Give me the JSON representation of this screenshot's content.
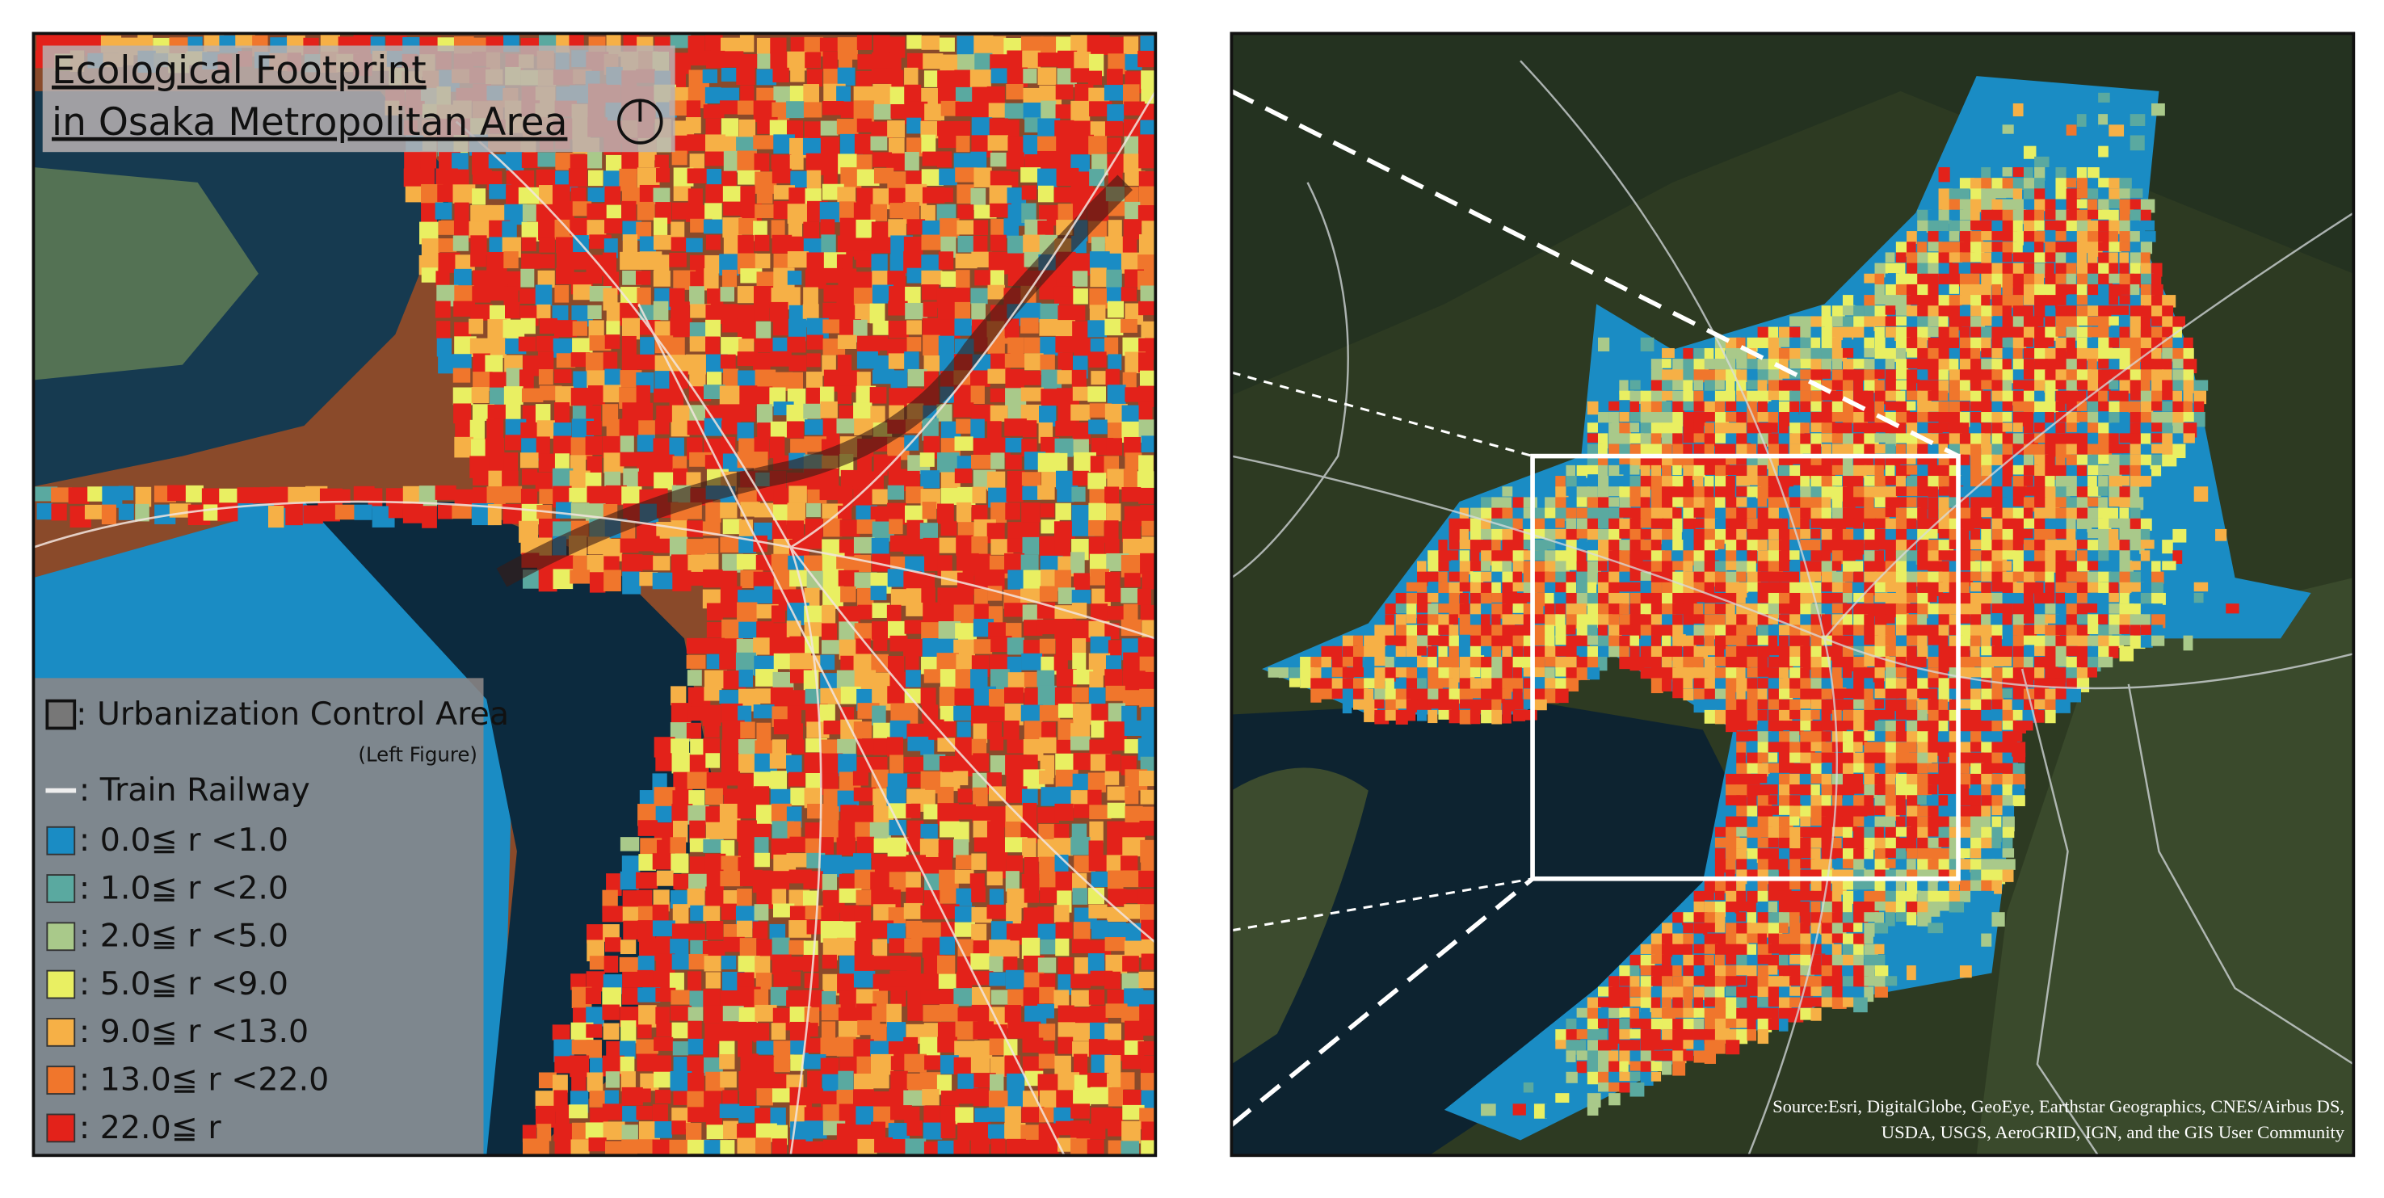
{
  "left_map": {
    "title_lines": [
      "Ecological Footprint",
      "in Osaka Metropolitan Area"
    ],
    "legend": {
      "urbanization": ": Urbanization Control Area",
      "urbanization_note": "(Left Figure)",
      "railway": ": Train Railway",
      "items": [
        {
          "label": ":   0.0≦ r <1.0",
          "color": "#1a8cc4"
        },
        {
          "label": ":   1.0≦ r <2.0",
          "color": "#5aa9a0"
        },
        {
          "label": ":   2.0≦ r <5.0",
          "color": "#a9c98a"
        },
        {
          "label": ":   5.0≦ r <9.0",
          "color": "#e9ef62"
        },
        {
          "label": ":   9.0≦ r <13.0",
          "color": "#f6b046"
        },
        {
          "label": ": 13.0≦ r <22.0",
          "color": "#f0762c"
        },
        {
          "label": ": 22.0≦ r",
          "color": "#e3221a"
        }
      ]
    }
  },
  "right_map": {
    "source_lines": [
      "Source:Esri, DigitalGlobe, GeoEye, Earthstar Geographics, CNES/Airbus DS,",
      "USDA, USGS, AeroGRID, IGN, and the GIS User Community"
    ]
  }
}
